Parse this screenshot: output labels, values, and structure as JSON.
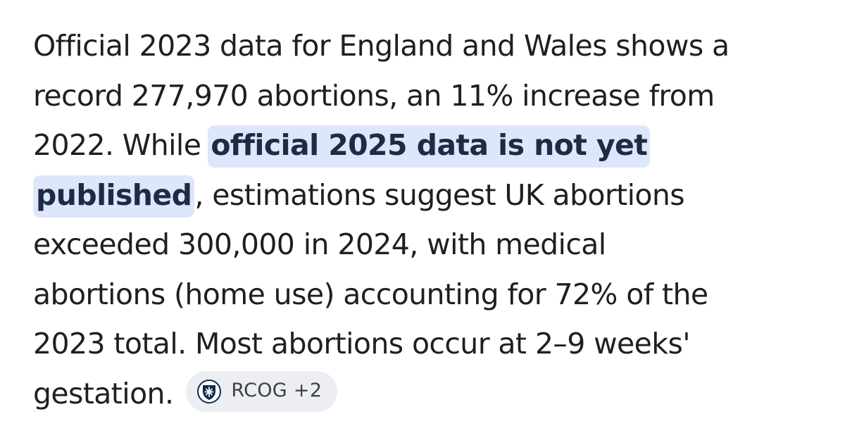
{
  "answer": {
    "lines": [
      {
        "text": "Official 2023 data for England and Wales shows a"
      },
      {
        "text": "record 277,970 abortions, an 11% increase from"
      },
      {
        "before": "2022. While",
        "highlight": "official 2025 data is not yet"
      },
      {
        "highlight": "published",
        "after": ", estimations suggest UK abortions"
      },
      {
        "text": "exceeded 300,000 in 2024, with medical"
      },
      {
        "text": "abortions (home use) accounting for 72% of the"
      },
      {
        "text": "2023 total. Most abortions occur at 2–9 weeks'"
      },
      {
        "text": "gestation."
      }
    ]
  },
  "source_chip": {
    "label": "RCOG +2",
    "icon": "rcog-crest-icon"
  },
  "colors": {
    "text": "#1f1f1f",
    "highlight_bg": "#dde6fb",
    "chip_bg": "#eceef3",
    "icon_navy": "#0f2a50"
  }
}
